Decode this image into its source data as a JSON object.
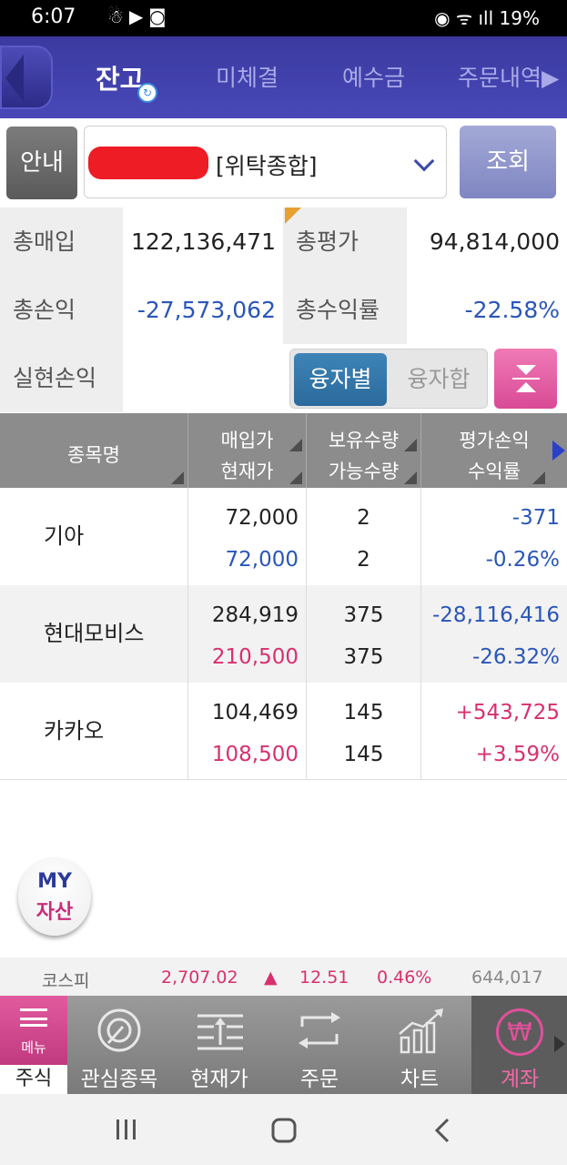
{
  "status_bar": {
    "time": "6:07",
    "battery": "19%"
  },
  "tabs": [
    {
      "label": "잔고",
      "active": true
    },
    {
      "label": "미체결",
      "active": false
    },
    {
      "label": "예수금",
      "active": false
    },
    {
      "label": "주문내역▶",
      "active": false
    }
  ],
  "account": {
    "info_label": "안내",
    "account_type": "[위탁종합]",
    "query_label": "조회"
  },
  "summary": {
    "total_purchase_label": "총매입",
    "total_purchase": "122,136,471",
    "total_eval_label": "총평가",
    "total_eval": "94,814,000",
    "total_pnl_label": "총손익",
    "total_pnl": "-27,573,062",
    "total_return_label": "총수익률",
    "total_return": "-22.58%",
    "realized_label": "실현손익",
    "realized": "",
    "toggle_a": "융자별",
    "toggle_b": "융자합"
  },
  "table": {
    "headers": [
      {
        "l1": "종목명",
        "l2": ""
      },
      {
        "l1": "매입가",
        "l2": "현재가"
      },
      {
        "l1": "보유수량",
        "l2": "가능수량"
      },
      {
        "l1": "평가손익",
        "l2": "수익률"
      }
    ],
    "rows": [
      {
        "name": "기아",
        "buy": "72,000",
        "cur": "72,000",
        "qty": "2",
        "avail": "2",
        "pnl": "-371",
        "ret": "-0.26%"
      },
      {
        "name": "현대모비스",
        "buy": "284,919",
        "cur": "210,500",
        "qty": "375",
        "avail": "375",
        "pnl": "-28,116,416",
        "ret": "-26.32%"
      },
      {
        "name": "카카오",
        "buy": "104,469",
        "cur": "108,500",
        "qty": "145",
        "avail": "145",
        "pnl": "+543,725",
        "ret": "+3.59%"
      }
    ]
  },
  "my_asset": {
    "line1": "MY",
    "line2": "자산"
  },
  "ticker": {
    "index": "코스피",
    "value": "2,707.02",
    "arrow": "▲",
    "change": "12.51",
    "pct": "0.46%",
    "volume": "644,017"
  },
  "bottom_nav": {
    "menu_label": "메뉴",
    "stock_label": "주식",
    "items": [
      {
        "label": "관심종목",
        "icon": "watchlist-icon"
      },
      {
        "label": "현재가",
        "icon": "current-price-icon"
      },
      {
        "label": "주문",
        "icon": "order-icon"
      },
      {
        "label": "차트",
        "icon": "chart-icon"
      },
      {
        "label": "계좌",
        "icon": "account-won-icon"
      }
    ]
  },
  "colors": {
    "header": "#3b3aa0",
    "negative": "#2a56b8",
    "positive": "#d8306e",
    "accent_pink": "#e0509a"
  }
}
